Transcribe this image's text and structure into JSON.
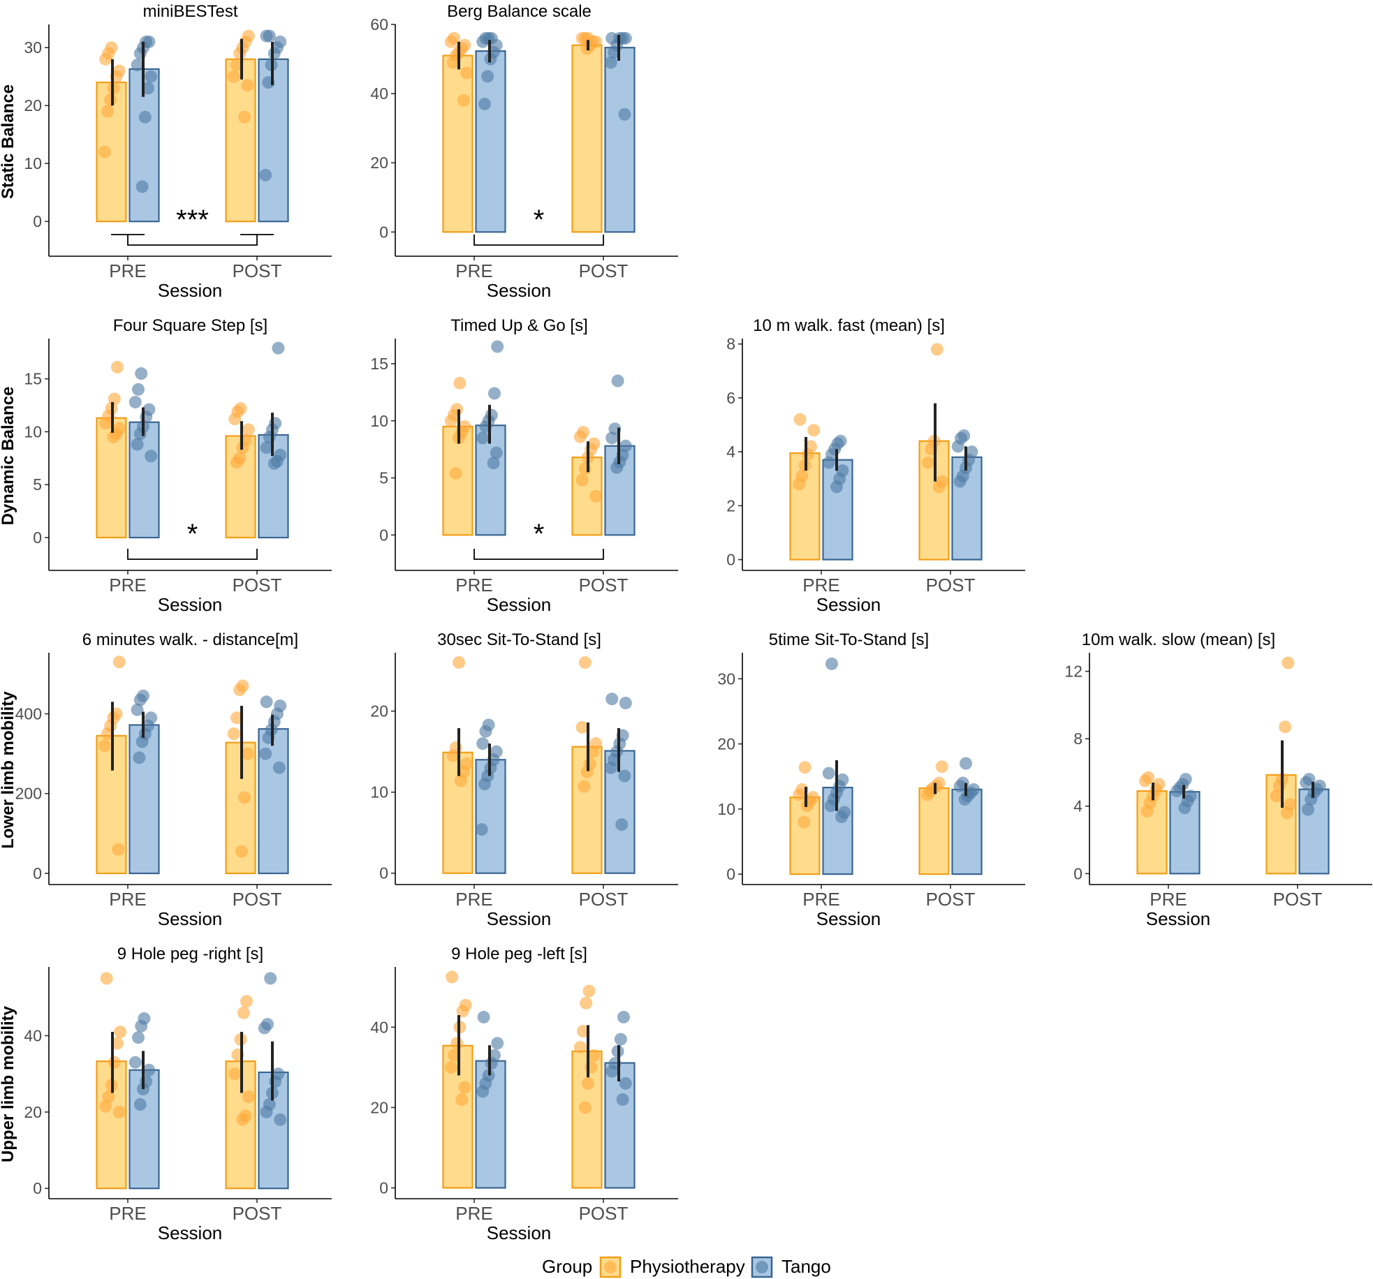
{
  "colors": {
    "Physiotherapy": {
      "fill": "#FFDB8C",
      "stroke": "#F29E16",
      "point": "#FFA93A"
    },
    "Tango": {
      "fill": "#A9C7E3",
      "stroke": "#3A6592",
      "point": "#4E7AA3"
    },
    "errorbar": "#222222"
  },
  "legend": {
    "title": "Group",
    "items": [
      "Physiotherapy",
      "Tango"
    ]
  },
  "row_labels": [
    "Static Balance",
    "Dynamic Balance",
    "Lower limb mobility",
    "Upper limb mobility"
  ],
  "chart_data": [
    {
      "type": "bar",
      "title": "miniBESTest",
      "row": 0,
      "col": 0,
      "xlabel": "Session",
      "ylabel": "Static Balance",
      "categories": [
        "PRE",
        "POST"
      ],
      "ylim": [
        -6,
        34
      ],
      "yticks": [
        0,
        10,
        20,
        30
      ],
      "series": [
        {
          "name": "Physiotherapy",
          "values": [
            24,
            28
          ],
          "ci": [
            [
              20,
              28
            ],
            [
              24.5,
              31.5
            ]
          ],
          "points": [
            [
              12,
              19,
              21,
              23,
              25,
              26,
              28,
              29,
              30
            ],
            [
              18,
              23.5,
              25,
              27,
              29,
              30,
              31,
              32
            ]
          ]
        },
        {
          "name": "Tango",
          "values": [
            26.3,
            28
          ],
          "ci": [
            [
              21.5,
              31
            ],
            [
              23.5,
              31
            ]
          ],
          "points": [
            [
              6,
              18,
              23,
              25,
              27,
              29,
              30,
              31,
              31
            ],
            [
              8,
              24,
              27,
              29,
              30,
              31,
              32,
              32
            ]
          ]
        }
      ],
      "significance": {
        "label": "***",
        "between": [
          "PRE",
          "POST"
        ]
      }
    },
    {
      "type": "bar",
      "title": "Berg Balance scale",
      "row": 0,
      "col": 1,
      "xlabel": "Session",
      "ylabel": "",
      "categories": [
        "PRE",
        "POST"
      ],
      "ylim": [
        -7,
        60
      ],
      "yticks": [
        0,
        20,
        40,
        60
      ],
      "series": [
        {
          "name": "Physiotherapy",
          "values": [
            51,
            54
          ],
          "ci": [
            [
              47,
              55
            ],
            [
              52.5,
              55.5
            ]
          ],
          "points": [
            [
              38,
              46,
              49,
              51,
              52,
              53,
              54,
              55,
              56
            ],
            [
              53,
              54,
              55,
              55,
              56,
              56,
              56
            ]
          ]
        },
        {
          "name": "Tango",
          "values": [
            52.3,
            53.3
          ],
          "ci": [
            [
              49,
              55.5
            ],
            [
              49.5,
              57
            ]
          ],
          "points": [
            [
              37,
              45,
              50,
              52,
              54,
              55,
              56,
              56,
              56
            ],
            [
              34,
              49,
              52,
              54,
              56,
              56,
              56,
              56
            ]
          ]
        }
      ],
      "significance": {
        "label": "*",
        "between": [
          "PRE",
          "POST"
        ]
      }
    },
    {
      "type": "bar",
      "title": "Four Square Step [s]",
      "row": 1,
      "col": 0,
      "xlabel": "Session",
      "ylabel": "Dynamic Balance",
      "categories": [
        "PRE",
        "POST"
      ],
      "ylim": [
        -3.1,
        18.8
      ],
      "yticks": [
        0,
        5,
        10,
        15
      ],
      "series": [
        {
          "name": "Physiotherapy",
          "values": [
            11.3,
            9.6
          ],
          "ci": [
            [
              9.9,
              12.8
            ],
            [
              8.3,
              11
            ]
          ],
          "points": [
            [
              9.5,
              9.8,
              10.3,
              10.8,
              11.5,
              12.2,
              13.1,
              16.1
            ],
            [
              7.1,
              7.5,
              8.5,
              9.2,
              10.2,
              11.2,
              11.9,
              12.2
            ]
          ]
        },
        {
          "name": "Tango",
          "values": [
            10.9,
            9.7
          ],
          "ci": [
            [
              9.6,
              12.3
            ],
            [
              7.7,
              11.8
            ]
          ],
          "points": [
            [
              7.7,
              8.8,
              9.8,
              10.5,
              11.4,
              12.1,
              12.8,
              14,
              15.5
            ],
            [
              7,
              7.2,
              7.8,
              8.5,
              9.5,
              10.2,
              10.8,
              17.9
            ]
          ]
        }
      ],
      "significance": {
        "label": "*",
        "between": [
          "PRE",
          "POST"
        ]
      }
    },
    {
      "type": "bar",
      "title": "Timed Up & Go [s]",
      "row": 1,
      "col": 1,
      "xlabel": "Session",
      "ylabel": "",
      "categories": [
        "PRE",
        "POST"
      ],
      "ylim": [
        -3.1,
        17.2
      ],
      "yticks": [
        0,
        5,
        10,
        15
      ],
      "series": [
        {
          "name": "Physiotherapy",
          "values": [
            9.5,
            6.8
          ],
          "ci": [
            [
              8,
              11
            ],
            [
              5.5,
              8.2
            ]
          ],
          "points": [
            [
              5.4,
              8.5,
              9,
              9.5,
              10,
              10.5,
              11,
              13.3
            ],
            [
              3.4,
              4.8,
              5.8,
              6.8,
              7.5,
              8,
              8.6,
              9
            ]
          ]
        },
        {
          "name": "Tango",
          "values": [
            9.6,
            7.8
          ],
          "ci": [
            [
              8,
              11.4
            ],
            [
              6.2,
              9.4
            ]
          ],
          "points": [
            [
              6.3,
              7.2,
              8.5,
              9.5,
              10,
              10.5,
              12.4,
              16.5
            ],
            [
              5.9,
              6.4,
              7,
              7.8,
              8.5,
              9.3,
              13.5
            ]
          ]
        }
      ],
      "significance": {
        "label": "*",
        "between": [
          "PRE",
          "POST"
        ]
      }
    },
    {
      "type": "bar",
      "title": "10 m walk. fast (mean)  [s]",
      "row": 1,
      "col": 2,
      "xlabel": "Session",
      "ylabel": "",
      "categories": [
        "PRE",
        "POST"
      ],
      "ylim": [
        -0.4,
        8.2
      ],
      "yticks": [
        0,
        2,
        4,
        6,
        8
      ],
      "series": [
        {
          "name": "Physiotherapy",
          "values": [
            3.95,
            4.4
          ],
          "ci": [
            [
              3.3,
              4.55
            ],
            [
              2.9,
              5.8
            ]
          ],
          "points": [
            [
              2.8,
              3.1,
              3.5,
              3.9,
              4.2,
              4.8,
              5.2
            ],
            [
              2.7,
              2.9,
              3.6,
              4.1,
              4.4,
              7.8
            ]
          ]
        },
        {
          "name": "Tango",
          "values": [
            3.7,
            3.8
          ],
          "ci": [
            [
              3.3,
              4.1
            ],
            [
              3.3,
              4.2
            ]
          ],
          "points": [
            [
              2.7,
              3,
              3.3,
              3.6,
              3.9,
              4.1,
              4.3,
              4.4
            ],
            [
              2.9,
              3.1,
              3.4,
              3.7,
              4,
              4.2,
              4.5,
              4.6
            ]
          ]
        }
      ],
      "significance": null
    },
    {
      "type": "bar",
      "title": "6 minutes walk. - distance[m]",
      "row": 2,
      "col": 0,
      "xlabel": "Session",
      "ylabel": "Lower limb mobility",
      "categories": [
        "PRE",
        "POST"
      ],
      "ylim": [
        -28,
        553
      ],
      "yticks": [
        0,
        200,
        400
      ],
      "series": [
        {
          "name": "Physiotherapy",
          "values": [
            345,
            328
          ],
          "ci": [
            [
              258,
              430
            ],
            [
              237,
              420
            ]
          ],
          "points": [
            [
              60,
              320,
              350,
              370,
              390,
              400,
              530
            ],
            [
              55,
              190,
              300,
              350,
              390,
              460,
              470
            ]
          ]
        },
        {
          "name": "Tango",
          "values": [
            372,
            362
          ],
          "ci": [
            [
              340,
              405
            ],
            [
              320,
              398
            ]
          ],
          "points": [
            [
              290,
              330,
              350,
              370,
              390,
              410,
              435,
              445
            ],
            [
              265,
              300,
              340,
              360,
              380,
              400,
              420,
              430
            ]
          ]
        }
      ],
      "significance": null
    },
    {
      "type": "bar",
      "title": "30sec Sit-To-Stand [s]",
      "row": 2,
      "col": 1,
      "xlabel": "Session",
      "ylabel": "",
      "categories": [
        "PRE",
        "POST"
      ],
      "ylim": [
        -1.4,
        27.2
      ],
      "yticks": [
        0,
        10,
        20
      ],
      "series": [
        {
          "name": "Physiotherapy",
          "values": [
            14.9,
            15.6
          ],
          "ci": [
            [
              12,
              17.9
            ],
            [
              12.6,
              18.6
            ]
          ],
          "points": [
            [
              11.4,
              12.5,
              13.5,
              14.5,
              15.5,
              26
            ],
            [
              10.7,
              12.5,
              13.5,
              15,
              16,
              18,
              26
            ]
          ]
        },
        {
          "name": "Tango",
          "values": [
            14,
            15.1
          ],
          "ci": [
            [
              12,
              16
            ],
            [
              12.5,
              17.9
            ]
          ],
          "points": [
            [
              5.4,
              11,
              12,
              13,
              14,
              15,
              16,
              17.5,
              18.3
            ],
            [
              6,
              12,
              13,
              14,
              15,
              16,
              17,
              21,
              21.5
            ]
          ]
        }
      ],
      "significance": null
    },
    {
      "type": "bar",
      "title": "5time Sit-To-Stand [s]",
      "row": 2,
      "col": 2,
      "xlabel": "Session",
      "ylabel": "",
      "categories": [
        "PRE",
        "POST"
      ],
      "ylim": [
        -1.6,
        34
      ],
      "yticks": [
        0,
        10,
        20,
        30
      ],
      "series": [
        {
          "name": "Physiotherapy",
          "values": [
            11.8,
            13.2
          ],
          "ci": [
            [
              10.3,
              13.4
            ],
            [
              12.3,
              14
            ]
          ],
          "points": [
            [
              8,
              10.5,
              11.2,
              11.8,
              12.2,
              13,
              16.4
            ],
            [
              12.2,
              12.8,
              13.2,
              13.5,
              14,
              16.5
            ]
          ]
        },
        {
          "name": "Tango",
          "values": [
            13.3,
            13
          ],
          "ci": [
            [
              9.7,
              17.5
            ],
            [
              12,
              14
            ]
          ],
          "points": [
            [
              8.8,
              9.5,
              10.5,
              11.5,
              12.5,
              13.5,
              14.5,
              15.5,
              32.3
            ],
            [
              11.5,
              12,
              12.5,
              13,
              13.5,
              14,
              17
            ]
          ]
        }
      ],
      "significance": null
    },
    {
      "type": "bar",
      "title": "10m walk. slow (mean)  [s]",
      "row": 2,
      "col": 3,
      "xlabel": "Session",
      "ylabel": "",
      "categories": [
        "PRE",
        "POST"
      ],
      "ylim": [
        -0.65,
        13.1
      ],
      "yticks": [
        0,
        4,
        8,
        12
      ],
      "series": [
        {
          "name": "Physiotherapy",
          "values": [
            4.9,
            5.85
          ],
          "ci": [
            [
              4.35,
              5.4
            ],
            [
              3.9,
              7.9
            ]
          ],
          "points": [
            [
              3.7,
              4.2,
              4.6,
              5,
              5.3,
              5.5,
              5.7
            ],
            [
              3.6,
              4.1,
              4.6,
              5.2,
              5.6,
              8.7,
              12.5
            ]
          ]
        },
        {
          "name": "Tango",
          "values": [
            4.85,
            5
          ],
          "ci": [
            [
              4.45,
              5.25
            ],
            [
              4.5,
              5.45
            ]
          ],
          "points": [
            [
              3.9,
              4.3,
              4.6,
              4.9,
              5.1,
              5.3,
              5.6
            ],
            [
              3.8,
              4.4,
              4.8,
              5,
              5.2,
              5.4,
              5.6
            ]
          ]
        }
      ],
      "significance": null
    },
    {
      "type": "bar",
      "title": "9 Hole peg -right [s]",
      "row": 3,
      "col": 0,
      "xlabel": "Session",
      "ylabel": "Upper limb mobility",
      "categories": [
        "PRE",
        "POST"
      ],
      "ylim": [
        -2.7,
        58
      ],
      "yticks": [
        0,
        20,
        40
      ],
      "series": [
        {
          "name": "Physiotherapy",
          "values": [
            33.3,
            33.3
          ],
          "ci": [
            [
              25,
              41
            ],
            [
              25,
              41
            ]
          ],
          "points": [
            [
              20,
              21.5,
              24,
              27,
              33,
              38,
              41,
              55
            ],
            [
              18,
              19,
              24,
              30,
              35,
              39,
              46,
              49
            ]
          ]
        },
        {
          "name": "Tango",
          "values": [
            31,
            30.4
          ],
          "ci": [
            [
              26,
              36
            ],
            [
              23,
              38.5
            ]
          ],
          "points": [
            [
              22,
              26,
              28,
              31,
              33,
              39.5,
              42.5,
              44.5
            ],
            [
              18,
              20,
              22,
              25,
              28,
              30,
              42,
              43,
              55
            ]
          ]
        }
      ],
      "significance": null
    },
    {
      "type": "bar",
      "title": "9 Hole peg -left [s]",
      "row": 3,
      "col": 1,
      "xlabel": "Session",
      "ylabel": "",
      "categories": [
        "PRE",
        "POST"
      ],
      "ylim": [
        -2.7,
        55
      ],
      "yticks": [
        0,
        20,
        40
      ],
      "series": [
        {
          "name": "Physiotherapy",
          "values": [
            35.4,
            34
          ],
          "ci": [
            [
              28,
              43
            ],
            [
              27.5,
              40.5
            ]
          ],
          "points": [
            [
              22,
              25,
              30,
              33,
              36,
              40,
              44,
              45.5,
              52.5
            ],
            [
              20,
              26,
              30,
              33,
              35,
              39,
              46,
              49
            ]
          ]
        },
        {
          "name": "Tango",
          "values": [
            31.6,
            31.1
          ],
          "ci": [
            [
              28,
              35.5
            ],
            [
              26.5,
              35.5
            ]
          ],
          "points": [
            [
              24,
              26,
              28,
              31,
              33,
              36,
              42.5
            ],
            [
              22,
              26,
              29,
              31,
              34,
              37,
              42.5
            ]
          ]
        }
      ],
      "significance": null
    }
  ]
}
